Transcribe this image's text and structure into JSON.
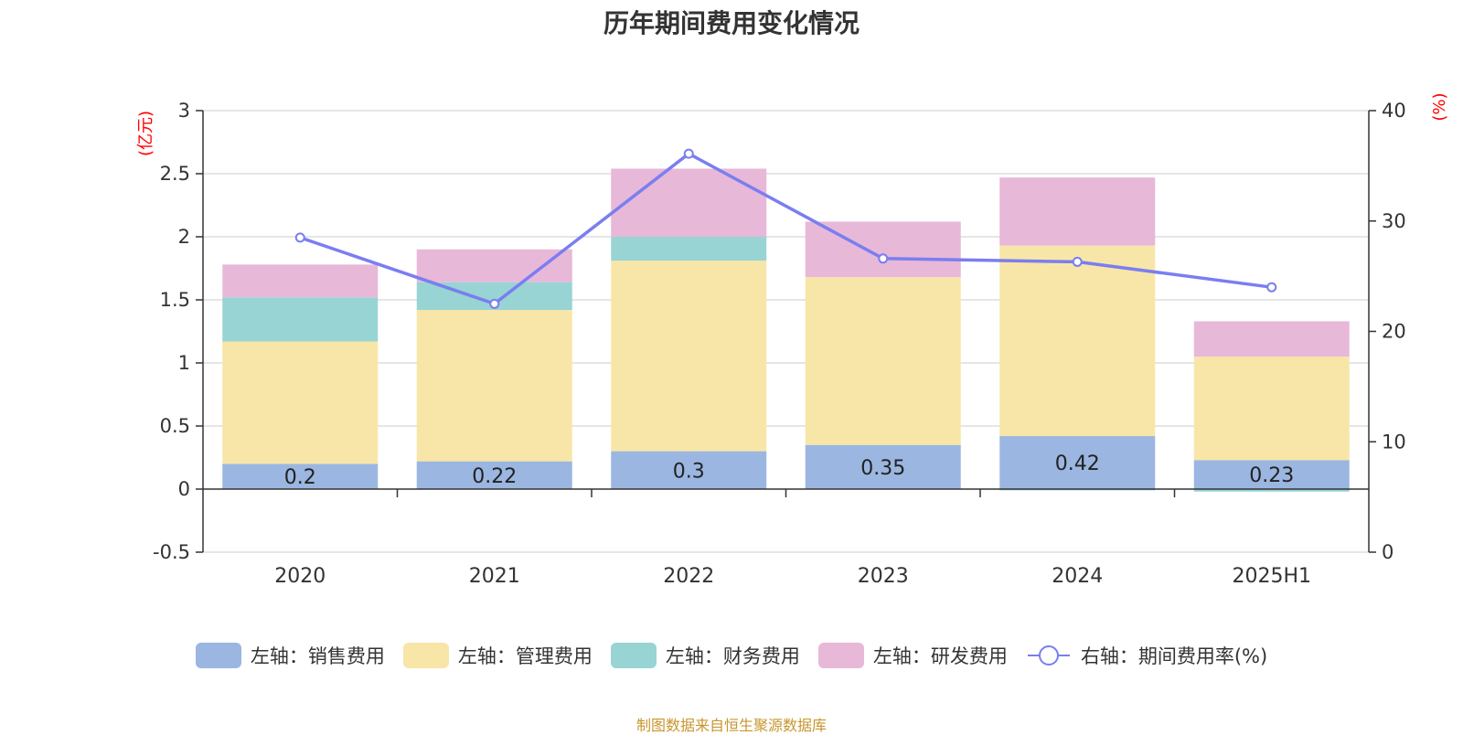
{
  "title": "历年期间费用变化情况",
  "source": "制图数据来自恒生聚源数据库",
  "chart_data": {
    "type": "bar",
    "stacked": true,
    "categories": [
      "2020",
      "2021",
      "2022",
      "2023",
      "2024",
      "2025H1"
    ],
    "series": [
      {
        "name": "左轴：销售费用",
        "axis": "left",
        "color": "#9bb6e0",
        "values": [
          0.2,
          0.22,
          0.3,
          0.35,
          0.42,
          0.23
        ],
        "show_labels": true
      },
      {
        "name": "左轴：管理费用",
        "axis": "left",
        "color": "#f8e6a8",
        "values": [
          0.97,
          1.2,
          1.51,
          1.33,
          1.51,
          0.82
        ]
      },
      {
        "name": "左轴：财务费用",
        "axis": "left",
        "color": "#98d4d4",
        "values": [
          0.35,
          0.22,
          0.19,
          0.0,
          -0.01,
          -0.02
        ]
      },
      {
        "name": "左轴：研发费用",
        "axis": "left",
        "color": "#e8b8d8",
        "values": [
          0.26,
          0.26,
          0.54,
          0.44,
          0.54,
          0.28
        ]
      },
      {
        "name": "右轴：期间费用率(%)",
        "axis": "right",
        "type": "line",
        "color": "#7a7ef0",
        "values": [
          28.5,
          22.5,
          36.1,
          26.6,
          26.3,
          24.0
        ]
      }
    ],
    "y_left": {
      "unit": "(亿元)",
      "ylim": [
        -0.5,
        3
      ],
      "ticks": [
        "-0.5",
        "0",
        "0.5",
        "1",
        "1.5",
        "2",
        "2.5",
        "3"
      ]
    },
    "y_right": {
      "unit": "(%)",
      "ylim": [
        0,
        40
      ],
      "ticks": [
        "0",
        "10",
        "20",
        "30",
        "40"
      ]
    },
    "grid": true,
    "legend_position": "bottom"
  }
}
